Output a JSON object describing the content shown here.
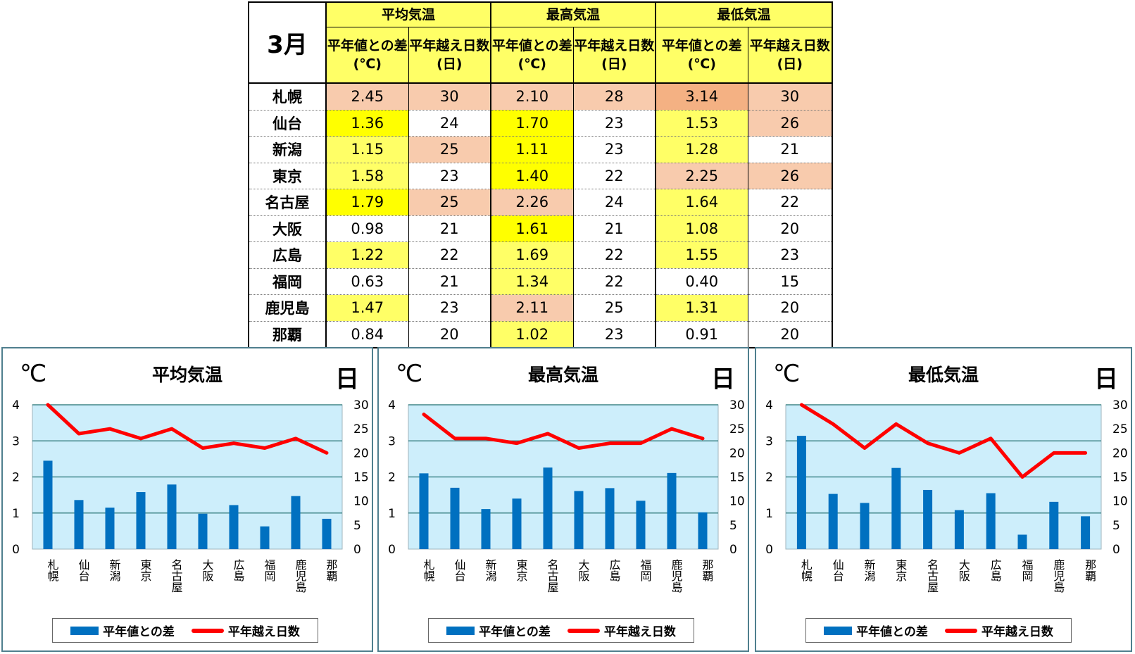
{
  "table": {
    "month_label": "3月",
    "groups": [
      "平均気温",
      "最高気温",
      "最低気温"
    ],
    "sub_headers": [
      "平年値との差(℃)",
      "平年越え日数(日)"
    ],
    "rows": [
      {
        "city": "札幌",
        "values": [
          "2.45",
          "30",
          "2.10",
          "28",
          "3.14",
          "30"
        ],
        "colors": [
          "pch",
          "pch",
          "pch",
          "pch",
          "org",
          "pch"
        ]
      },
      {
        "city": "仙台",
        "values": [
          "1.36",
          "24",
          "1.70",
          "23",
          "1.53",
          "26"
        ],
        "colors": [
          "yel",
          "wht",
          "yel",
          "wht",
          "lyl",
          "pch"
        ]
      },
      {
        "city": "新潟",
        "values": [
          "1.15",
          "25",
          "1.11",
          "23",
          "1.28",
          "21"
        ],
        "colors": [
          "lyl",
          "pch",
          "yel",
          "wht",
          "lyl",
          "wht"
        ]
      },
      {
        "city": "東京",
        "values": [
          "1.58",
          "23",
          "1.40",
          "22",
          "2.25",
          "26"
        ],
        "colors": [
          "lyl",
          "wht",
          "yel",
          "wht",
          "pch",
          "pch"
        ]
      },
      {
        "city": "名古屋",
        "values": [
          "1.79",
          "25",
          "2.26",
          "24",
          "1.64",
          "22"
        ],
        "colors": [
          "yel",
          "pch",
          "pch",
          "wht",
          "lyl",
          "wht"
        ]
      },
      {
        "city": "大阪",
        "values": [
          "0.98",
          "21",
          "1.61",
          "21",
          "1.08",
          "20"
        ],
        "colors": [
          "wht",
          "wht",
          "yel",
          "wht",
          "lyl",
          "wht"
        ]
      },
      {
        "city": "広島",
        "values": [
          "1.22",
          "22",
          "1.69",
          "22",
          "1.55",
          "23"
        ],
        "colors": [
          "lyl",
          "wht",
          "lyl",
          "wht",
          "lyl",
          "wht"
        ]
      },
      {
        "city": "福岡",
        "values": [
          "0.63",
          "21",
          "1.34",
          "22",
          "0.40",
          "15"
        ],
        "colors": [
          "wht",
          "wht",
          "lyl",
          "wht",
          "wht",
          "wht"
        ]
      },
      {
        "city": "鹿児島",
        "values": [
          "1.47",
          "23",
          "2.11",
          "25",
          "1.31",
          "20"
        ],
        "colors": [
          "lyl",
          "wht",
          "pch",
          "wht",
          "lyl",
          "wht"
        ]
      },
      {
        "city": "那覇",
        "values": [
          "0.84",
          "20",
          "1.02",
          "23",
          "0.91",
          "20"
        ],
        "colors": [
          "wht",
          "wht",
          "lyl",
          "wht",
          "wht",
          "wht"
        ]
      }
    ]
  },
  "colors": {
    "bar": "#0070c0",
    "line": "#ff0000",
    "plot_bg": "#cdeefb",
    "grid": "#1f6f6f",
    "yellow": "#ffff00",
    "light_yellow": "#ffff66",
    "peach": "#f8cbad",
    "orange": "#f4b183"
  },
  "chart_data": [
    {
      "type": "bar",
      "title": "平均気温",
      "ylabel_left": "℃",
      "ylabel_right": "日",
      "categories": [
        "札幌",
        "仙台",
        "新潟",
        "東京",
        "名古屋",
        "大阪",
        "広島",
        "福岡",
        "鹿児島",
        "那覇"
      ],
      "ylim_left": [
        0,
        4
      ],
      "ylim_right": [
        0,
        30
      ],
      "yticks_left": [
        "0",
        "1",
        "2",
        "3",
        "4"
      ],
      "yticks_right": [
        "0",
        "5",
        "10",
        "15",
        "20",
        "25",
        "30"
      ],
      "series": [
        {
          "name": "平年値との差",
          "type": "bar",
          "axis": "left",
          "values": [
            2.45,
            1.36,
            1.15,
            1.58,
            1.79,
            0.98,
            1.22,
            0.63,
            1.47,
            0.84
          ]
        },
        {
          "name": "平年越え日数",
          "type": "line",
          "axis": "right",
          "values": [
            30,
            24,
            25,
            23,
            25,
            21,
            22,
            21,
            23,
            20
          ]
        }
      ],
      "grid": true,
      "legend_position": "bottom"
    },
    {
      "type": "bar",
      "title": "最高気温",
      "ylabel_left": "℃",
      "ylabel_right": "日",
      "categories": [
        "札幌",
        "仙台",
        "新潟",
        "東京",
        "名古屋",
        "大阪",
        "広島",
        "福岡",
        "鹿児島",
        "那覇"
      ],
      "ylim_left": [
        0,
        4
      ],
      "ylim_right": [
        0,
        30
      ],
      "yticks_left": [
        "0",
        "1",
        "2",
        "3",
        "4"
      ],
      "yticks_right": [
        "0",
        "5",
        "10",
        "15",
        "20",
        "25",
        "30"
      ],
      "series": [
        {
          "name": "平年値との差",
          "type": "bar",
          "axis": "left",
          "values": [
            2.1,
            1.7,
            1.11,
            1.4,
            2.26,
            1.61,
            1.69,
            1.34,
            2.11,
            1.02
          ]
        },
        {
          "name": "平年越え日数",
          "type": "line",
          "axis": "right",
          "values": [
            28,
            23,
            23,
            22,
            24,
            21,
            22,
            22,
            25,
            23
          ]
        }
      ],
      "grid": true,
      "legend_position": "bottom"
    },
    {
      "type": "bar",
      "title": "最低気温",
      "ylabel_left": "℃",
      "ylabel_right": "日",
      "categories": [
        "札幌",
        "仙台",
        "新潟",
        "東京",
        "名古屋",
        "大阪",
        "広島",
        "福岡",
        "鹿児島",
        "那覇"
      ],
      "ylim_left": [
        0,
        4
      ],
      "ylim_right": [
        0,
        30
      ],
      "yticks_left": [
        "0",
        "1",
        "2",
        "3",
        "4"
      ],
      "yticks_right": [
        "0",
        "5",
        "10",
        "15",
        "20",
        "25",
        "30"
      ],
      "series": [
        {
          "name": "平年値との差",
          "type": "bar",
          "axis": "left",
          "values": [
            3.14,
            1.53,
            1.28,
            2.25,
            1.64,
            1.08,
            1.55,
            0.4,
            1.31,
            0.91
          ]
        },
        {
          "name": "平年越え日数",
          "type": "line",
          "axis": "right",
          "values": [
            30,
            26,
            21,
            26,
            22,
            20,
            23,
            15,
            20,
            20
          ]
        }
      ],
      "grid": true,
      "legend_position": "bottom"
    }
  ]
}
